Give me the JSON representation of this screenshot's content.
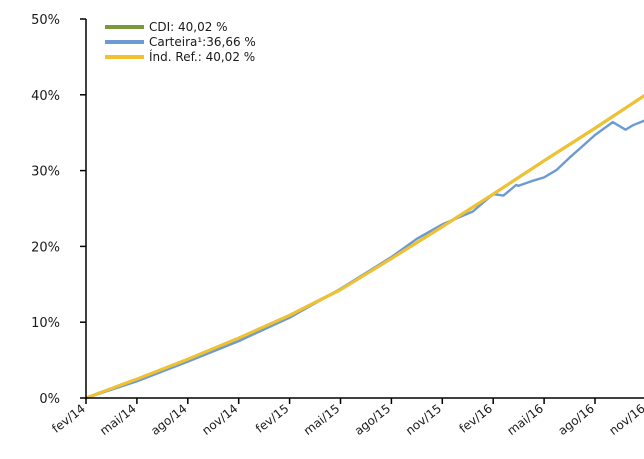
{
  "chart_data": {
    "type": "line",
    "title": "",
    "xlabel": "",
    "ylabel": "",
    "ylim": [
      0,
      50
    ],
    "y_unit": "%",
    "grid": false,
    "legend_position": "top-left",
    "x_categories": [
      "fev/14",
      "mai/14",
      "ago/14",
      "nov/14",
      "fev/15",
      "mai/15",
      "ago/15",
      "nov/15",
      "fev/16",
      "mai/16",
      "ago/16",
      "nov/16"
    ],
    "yticks": [
      "0%",
      "10%",
      "20%",
      "30%",
      "40%",
      "50%"
    ],
    "series": [
      {
        "name": "CDI",
        "legend_label": "CDI: 40,02 %",
        "color": "#7a9a3a",
        "x": [
          0,
          1,
          2,
          3,
          4,
          5,
          6,
          7,
          8,
          9,
          10,
          11
        ],
        "values": [
          0,
          2.5,
          5.1,
          7.9,
          10.9,
          14.3,
          18.4,
          22.6,
          26.9,
          31.3,
          35.6,
          40.02
        ]
      },
      {
        "name": "Carteira¹",
        "legend_label": "Carteira¹:36,66 %",
        "color": "#6b9bd2",
        "x": [
          0,
          1,
          2,
          3,
          4,
          5,
          6,
          6.5,
          7,
          7.6,
          8,
          8.2,
          8.45,
          8.5,
          8.75,
          9,
          9.25,
          9.5,
          9.8,
          10,
          10.35,
          10.55,
          10.6,
          10.75,
          11
        ],
        "values": [
          0,
          2.2,
          4.8,
          7.5,
          10.6,
          14.4,
          18.6,
          21,
          22.9,
          24.6,
          26.9,
          26.7,
          28.1,
          28.0,
          28.6,
          29.1,
          30.1,
          31.7,
          33.5,
          34.7,
          36.4,
          35.6,
          35.4,
          36.0,
          36.66
        ]
      },
      {
        "name": "Índ. Ref.",
        "legend_label": "Índ. Ref.: 40,02 %",
        "color": "#f2c12e",
        "x": [
          0,
          1,
          2,
          3,
          4,
          5,
          6,
          7,
          8,
          9,
          10,
          11
        ],
        "values": [
          0,
          2.5,
          5.1,
          7.9,
          10.9,
          14.3,
          18.4,
          22.6,
          26.9,
          31.3,
          35.6,
          40.02
        ]
      }
    ]
  }
}
